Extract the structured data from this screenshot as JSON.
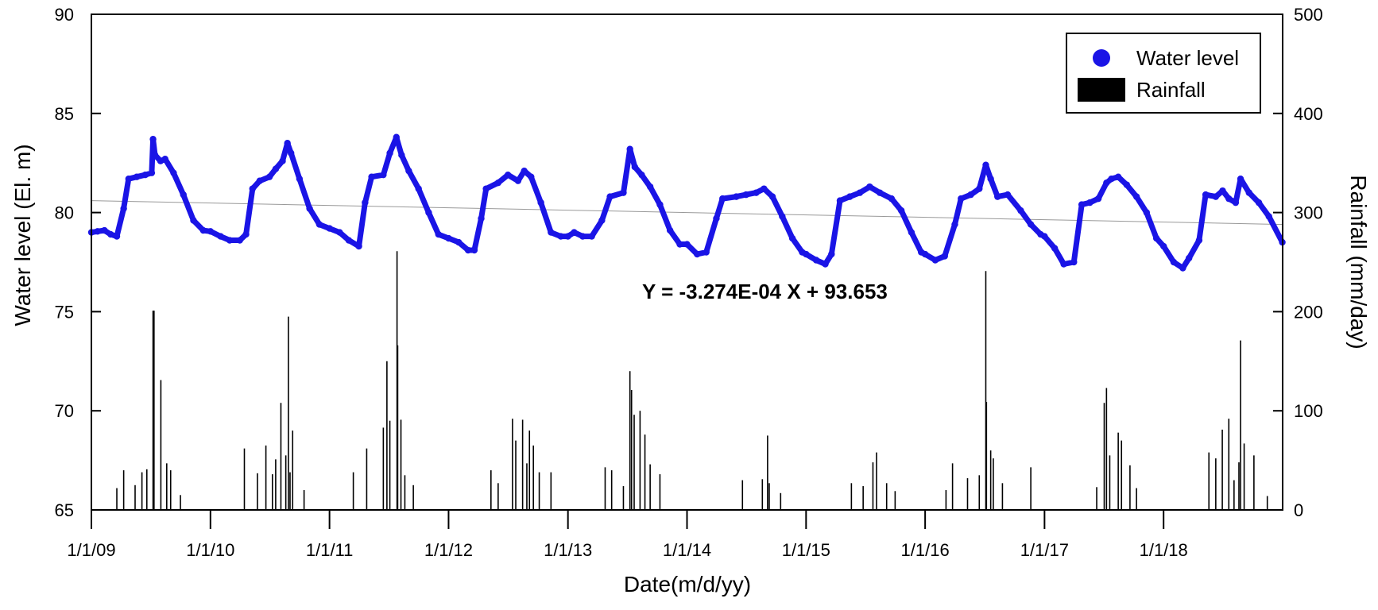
{
  "chart_data": {
    "type": "line",
    "title": "",
    "xlabel": "Date(m/d/yy)",
    "ylabel_left": "Water level (El. m)",
    "ylabel_right": "Rainfall (mm/day)",
    "x_tick_labels": [
      "1/1/09",
      "1/1/10",
      "1/1/11",
      "1/1/12",
      "1/1/13",
      "1/1/14",
      "1/1/15",
      "1/1/16",
      "1/1/17",
      "1/1/18"
    ],
    "x_range": [
      "1/1/09",
      "1/1/19"
    ],
    "ylim_left": [
      65,
      90
    ],
    "yticks_left": [
      65,
      70,
      75,
      80,
      85,
      90
    ],
    "ylim_right": [
      0,
      500
    ],
    "yticks_right": [
      0,
      100,
      200,
      300,
      400,
      500
    ],
    "legend": {
      "position": "top-right",
      "entries": [
        {
          "label": "Water level",
          "color": "#1a14e6",
          "marker": "circle"
        },
        {
          "label": "Rainfall",
          "color": "#000000",
          "marker": "bar"
        }
      ]
    },
    "trendline": {
      "equation": "Y = -3.274E-04 X + 93.653",
      "start": [
        "1/1/09",
        80.6
      ],
      "end": [
        "1/1/19",
        79.4
      ],
      "color": "#999999"
    },
    "series": [
      {
        "name": "Water level",
        "axis": "left",
        "color": "#1a14e6",
        "points": [
          [
            "1/1/09",
            79.0
          ],
          [
            "1/20/09",
            79.05
          ],
          [
            "2/10/09",
            79.1
          ],
          [
            "3/1/09",
            78.9
          ],
          [
            "3/20/09",
            78.8
          ],
          [
            "4/10/09",
            80.2
          ],
          [
            "4/25/09",
            81.7
          ],
          [
            "5/20/09",
            81.8
          ],
          [
            "6/15/09",
            81.9
          ],
          [
            "7/5/09",
            82.0
          ],
          [
            "7/9/09",
            83.7
          ],
          [
            "7/15/09",
            82.9
          ],
          [
            "8/1/09",
            82.6
          ],
          [
            "8/15/09",
            82.7
          ],
          [
            "9/10/09",
            82.0
          ],
          [
            "10/10/09",
            80.9
          ],
          [
            "11/10/09",
            79.6
          ],
          [
            "12/10/09",
            79.1
          ],
          [
            "1/1/10",
            79.05
          ],
          [
            "2/1/10",
            78.8
          ],
          [
            "3/1/10",
            78.6
          ],
          [
            "4/1/10",
            78.6
          ],
          [
            "4/20/10",
            78.9
          ],
          [
            "5/10/10",
            81.2
          ],
          [
            "6/1/10",
            81.6
          ],
          [
            "7/1/10",
            81.8
          ],
          [
            "7/20/10",
            82.2
          ],
          [
            "8/10/10",
            82.6
          ],
          [
            "8/25/10",
            83.5
          ],
          [
            "9/5/10",
            83.0
          ],
          [
            "10/1/10",
            81.7
          ],
          [
            "11/1/10",
            80.2
          ],
          [
            "12/1/10",
            79.4
          ],
          [
            "1/1/11",
            79.2
          ],
          [
            "2/1/11",
            79.0
          ],
          [
            "3/1/11",
            78.6
          ],
          [
            "4/1/11",
            78.3
          ],
          [
            "4/20/11",
            80.5
          ],
          [
            "5/10/11",
            81.8
          ],
          [
            "6/15/11",
            81.9
          ],
          [
            "7/5/11",
            83.0
          ],
          [
            "7/25/11",
            83.8
          ],
          [
            "8/10/11",
            82.9
          ],
          [
            "9/1/11",
            82.1
          ],
          [
            "10/1/11",
            81.2
          ],
          [
            "11/1/11",
            80.0
          ],
          [
            "12/1/11",
            78.9
          ],
          [
            "1/1/12",
            78.7
          ],
          [
            "2/1/12",
            78.5
          ],
          [
            "3/1/12",
            78.1
          ],
          [
            "3/20/12",
            78.1
          ],
          [
            "4/10/12",
            79.7
          ],
          [
            "4/25/12",
            81.2
          ],
          [
            "6/1/12",
            81.5
          ],
          [
            "7/1/12",
            81.9
          ],
          [
            "8/1/12",
            81.6
          ],
          [
            "8/20/12",
            82.1
          ],
          [
            "9/10/12",
            81.8
          ],
          [
            "10/10/12",
            80.5
          ],
          [
            "11/10/12",
            79.0
          ],
          [
            "12/10/12",
            78.8
          ],
          [
            "1/1/13",
            78.8
          ],
          [
            "1/20/13",
            79.0
          ],
          [
            "2/15/13",
            78.8
          ],
          [
            "3/15/13",
            78.8
          ],
          [
            "4/15/13",
            79.6
          ],
          [
            "5/10/13",
            80.8
          ],
          [
            "6/20/13",
            81.0
          ],
          [
            "7/10/13",
            83.2
          ],
          [
            "7/25/13",
            82.3
          ],
          [
            "8/15/13",
            81.9
          ],
          [
            "9/10/13",
            81.3
          ],
          [
            "10/10/13",
            80.4
          ],
          [
            "11/10/13",
            79.1
          ],
          [
            "12/10/13",
            78.4
          ],
          [
            "1/1/14",
            78.4
          ],
          [
            "2/1/14",
            77.9
          ],
          [
            "3/1/14",
            78.0
          ],
          [
            "4/1/14",
            79.7
          ],
          [
            "4/20/14",
            80.7
          ],
          [
            "6/1/14",
            80.8
          ],
          [
            "7/1/14",
            80.9
          ],
          [
            "8/1/14",
            81.0
          ],
          [
            "8/25/14",
            81.2
          ],
          [
            "9/20/14",
            80.8
          ],
          [
            "10/20/14",
            79.8
          ],
          [
            "11/20/14",
            78.7
          ],
          [
            "12/20/14",
            78.0
          ],
          [
            "1/1/15",
            77.9
          ],
          [
            "2/1/15",
            77.6
          ],
          [
            "3/1/15",
            77.4
          ],
          [
            "3/20/15",
            77.9
          ],
          [
            "4/15/15",
            80.6
          ],
          [
            "5/15/15",
            80.8
          ],
          [
            "6/15/15",
            81.0
          ],
          [
            "7/15/15",
            81.3
          ],
          [
            "8/15/15",
            81.0
          ],
          [
            "9/20/15",
            80.7
          ],
          [
            "10/20/15",
            80.1
          ],
          [
            "11/20/15",
            79.0
          ],
          [
            "12/20/15",
            78.0
          ],
          [
            "1/1/16",
            77.9
          ],
          [
            "2/1/16",
            77.6
          ],
          [
            "3/1/16",
            77.8
          ],
          [
            "4/1/16",
            79.4
          ],
          [
            "4/20/16",
            80.7
          ],
          [
            "5/20/16",
            80.9
          ],
          [
            "6/15/16",
            81.2
          ],
          [
            "7/5/16",
            82.4
          ],
          [
            "7/20/16",
            81.7
          ],
          [
            "8/10/16",
            80.8
          ],
          [
            "9/10/16",
            80.9
          ],
          [
            "10/20/16",
            80.1
          ],
          [
            "11/20/16",
            79.4
          ],
          [
            "12/20/16",
            78.9
          ],
          [
            "1/1/17",
            78.8
          ],
          [
            "2/1/17",
            78.2
          ],
          [
            "3/1/17",
            77.4
          ],
          [
            "4/1/17",
            77.5
          ],
          [
            "4/25/17",
            80.4
          ],
          [
            "5/20/17",
            80.5
          ],
          [
            "6/15/17",
            80.7
          ],
          [
            "7/10/17",
            81.5
          ],
          [
            "7/25/17",
            81.7
          ],
          [
            "8/15/17",
            81.8
          ],
          [
            "9/10/17",
            81.4
          ],
          [
            "10/10/17",
            80.8
          ],
          [
            "11/10/17",
            80.0
          ],
          [
            "12/10/17",
            78.7
          ],
          [
            "1/1/18",
            78.3
          ],
          [
            "2/1/18",
            77.5
          ],
          [
            "3/1/18",
            77.2
          ],
          [
            "3/20/18",
            77.7
          ],
          [
            "4/20/18",
            78.6
          ],
          [
            "5/10/18",
            80.9
          ],
          [
            "6/10/18",
            80.8
          ],
          [
            "7/1/18",
            81.1
          ],
          [
            "7/20/18",
            80.7
          ],
          [
            "8/10/18",
            80.5
          ],
          [
            "8/25/18",
            81.7
          ],
          [
            "9/20/18",
            81.0
          ],
          [
            "10/20/18",
            80.5
          ],
          [
            "11/20/18",
            79.8
          ],
          [
            "12/31/18",
            78.5
          ]
        ]
      },
      {
        "name": "Rainfall",
        "axis": "right",
        "color": "#000000",
        "points": [
          [
            "7/9/09",
            201
          ],
          [
            "7/12/09",
            201
          ],
          [
            "7/11/09",
            131
          ],
          [
            "8/2/09",
            131
          ],
          [
            "6/5/09",
            38
          ],
          [
            "6/20/09",
            41
          ],
          [
            "8/20/09",
            47
          ],
          [
            "9/1/09",
            40
          ],
          [
            "4/10/09",
            40
          ],
          [
            "3/20/09",
            22
          ],
          [
            "5/15/09",
            25
          ],
          [
            "10/1/09",
            15
          ],
          [
            "4/15/10",
            62
          ],
          [
            "5/25/10",
            37
          ],
          [
            "6/20/10",
            65
          ],
          [
            "7/10/10",
            36
          ],
          [
            "7/20/10",
            51
          ],
          [
            "8/5/10",
            108
          ],
          [
            "8/20/10",
            55
          ],
          [
            "8/28/10",
            195
          ],
          [
            "9/10/10",
            80
          ],
          [
            "9/2/10",
            38
          ],
          [
            "10/15/10",
            20
          ],
          [
            "3/15/11",
            38
          ],
          [
            "4/25/11",
            62
          ],
          [
            "6/15/11",
            83
          ],
          [
            "6/26/11",
            150
          ],
          [
            "7/5/11",
            90
          ],
          [
            "7/27/11",
            261
          ],
          [
            "7/29/11",
            166
          ],
          [
            "8/8/11",
            91
          ],
          [
            "8/20/11",
            35
          ],
          [
            "9/15/11",
            25
          ],
          [
            "5/10/12",
            40
          ],
          [
            "6/1/12",
            27
          ],
          [
            "7/15/12",
            92
          ],
          [
            "7/25/12",
            70
          ],
          [
            "8/15/12",
            91
          ],
          [
            "8/28/12",
            47
          ],
          [
            "9/5/12",
            80
          ],
          [
            "9/17/12",
            65
          ],
          [
            "10/5/12",
            38
          ],
          [
            "11/10/12",
            38
          ],
          [
            "4/25/13",
            43
          ],
          [
            "5/15/13",
            40
          ],
          [
            "6/20/13",
            24
          ],
          [
            "7/10/13",
            140
          ],
          [
            "7/15/13",
            121
          ],
          [
            "7/23/13",
            96
          ],
          [
            "8/10/13",
            100
          ],
          [
            "8/25/13",
            76
          ],
          [
            "9/10/13",
            46
          ],
          [
            "10/10/13",
            36
          ],
          [
            "6/20/14",
            30
          ],
          [
            "8/20/14",
            31
          ],
          [
            "9/5/14",
            75
          ],
          [
            "9/10/14",
            27
          ],
          [
            "10/15/14",
            17
          ],
          [
            "5/20/15",
            27
          ],
          [
            "6/25/15",
            24
          ],
          [
            "7/25/15",
            48
          ],
          [
            "8/5/15",
            58
          ],
          [
            "9/5/15",
            27
          ],
          [
            "10/1/15",
            19
          ],
          [
            "3/5/16",
            20
          ],
          [
            "3/25/16",
            47
          ],
          [
            "5/10/16",
            32
          ],
          [
            "6/15/16",
            35
          ],
          [
            "7/5/16",
            241
          ],
          [
            "7/7/16",
            109
          ],
          [
            "7/20/16",
            60
          ],
          [
            "7/28/16",
            52
          ],
          [
            "8/25/16",
            27
          ],
          [
            "11/20/16",
            43
          ],
          [
            "6/10/17",
            23
          ],
          [
            "7/3/17",
            108
          ],
          [
            "7/10/17",
            123
          ],
          [
            "7/20/17",
            55
          ],
          [
            "8/15/17",
            78
          ],
          [
            "8/25/17",
            70
          ],
          [
            "9/20/17",
            45
          ],
          [
            "10/10/17",
            22
          ],
          [
            "5/20/18",
            58
          ],
          [
            "6/10/18",
            52
          ],
          [
            "6/30/18",
            81
          ],
          [
            "7/20/18",
            92
          ],
          [
            "8/5/18",
            30
          ],
          [
            "8/20/18",
            48
          ],
          [
            "8/25/18",
            171
          ],
          [
            "9/5/18",
            67
          ],
          [
            "10/5/18",
            55
          ],
          [
            "11/15/18",
            14
          ]
        ]
      }
    ]
  }
}
